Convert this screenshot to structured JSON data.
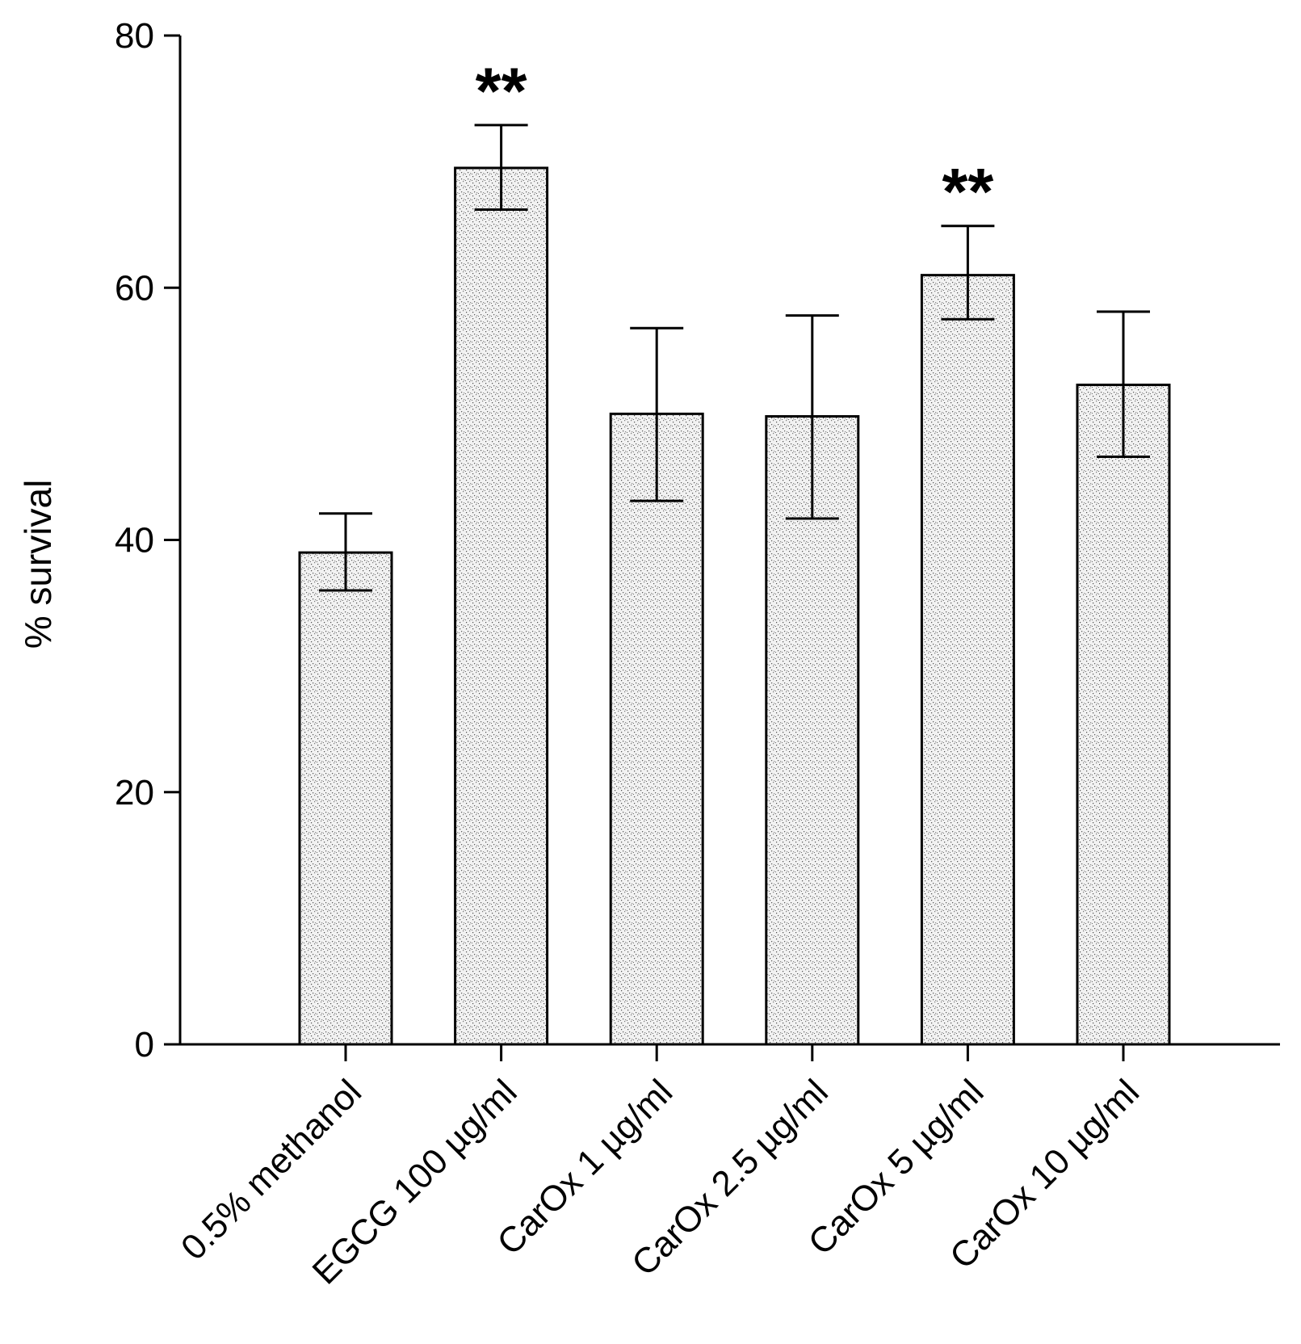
{
  "chart_data": {
    "type": "bar",
    "title": "",
    "xlabel": "",
    "ylabel": "% survival",
    "ylim": [
      0,
      80
    ],
    "yticks": [
      0,
      20,
      40,
      60,
      80
    ],
    "categories": [
      "0.5% methanol",
      "EGCG 100 µg/ml",
      "CarOx 1 µg/ml",
      "CarOx 2.5 µg/ml",
      "CarOx 5 µg/ml",
      "CarOx 10 µg/ml"
    ],
    "values": [
      39,
      69.5,
      50,
      49.8,
      61,
      52.3
    ],
    "error_upper": [
      42.1,
      72.9,
      56.8,
      57.8,
      64.9,
      58.1
    ],
    "error_lower": [
      36,
      66.2,
      43.1,
      41.7,
      57.5,
      46.6
    ],
    "annotations": [
      "",
      "**",
      "",
      "",
      "**",
      ""
    ],
    "bar_color": "#e6e6e6",
    "pattern": "stipple",
    "grid": false
  }
}
